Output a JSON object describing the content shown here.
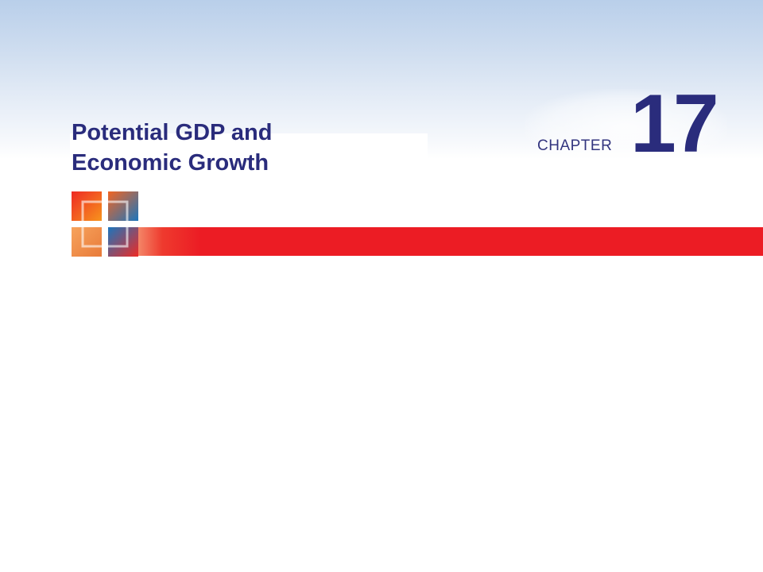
{
  "slide": {
    "title_line1": "Potential GDP and",
    "title_line2": "Economic Growth",
    "chapter_label": "CHAPTER",
    "chapter_number": "17"
  },
  "colors": {
    "title": "#2a2c7c",
    "accent_bar": "#ec1c24",
    "sky_top": "#b9cfea"
  },
  "icons": {
    "logo": "square-cross-logo-icon"
  }
}
